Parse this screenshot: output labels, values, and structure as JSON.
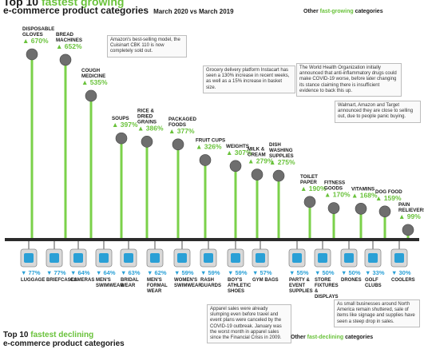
{
  "header": {
    "title_prefix": "Top 10 ",
    "title_accent": "fastest growing",
    "subtitle": "e-commerce product categories",
    "date_range": "March 2020 vs March 2019"
  },
  "other_growing": {
    "prefix": "Other ",
    "accent": "fast-growing",
    "suffix": " categories"
  },
  "other_declining": {
    "prefix": "Other ",
    "accent": "fast-declining",
    "suffix": " categories"
  },
  "footer": {
    "title_prefix": "Top 10 ",
    "title_accent": "fastest declining",
    "subtitle": "e-commerce product categories"
  },
  "notes": {
    "bread": "Amazon's best-selling model, the Cuisinart CBK 110 is now completely sold out.",
    "grocery": "Grocery delivery platform Instacart has seen a 130% increase in recent weeks, as well as a 15% increase in basket size.",
    "who": "The World Health Organization initially announced that anti-inflammatory drugs could make COVID-19 worse, before later changing its stance claiming there is insufficient evidence to back this up.",
    "walmart": "Walmart, Amazon and Target announced they are close to selling out, due to people panic buying.",
    "apparel": "Apparel sales were already slumping even before travel and event plans were canceled by the COVID-19 outbreak. January was the worst month in apparel sales since the Financial Crisis in 2009.",
    "smallbiz": "As small businesses around North America remain shuttered, sale of items like signage and supplies have seen a steep drop in sales."
  },
  "colors": {
    "accent": "#69c23a",
    "stem": "#7bd14a",
    "decline": "#2aa0d6",
    "baseline": "#2b2b2b",
    "icon": "#6e6e6e"
  },
  "chart_data": [
    {
      "type": "bar",
      "title": "Top 10 fastest growing e-commerce product categories",
      "subtitle": "March 2020 vs March 2019",
      "unit": "%",
      "series": [
        {
          "categories": [
            "DISPOSABLE GLOVES",
            "BREAD MACHINES",
            "COUGH MEDICINE",
            "SOUPS",
            "RICE & DRIED GRAINS",
            "PACKAGED FOODS",
            "FRUIT CUPS",
            "WEIGHTS",
            "MILK & CREAM",
            "DISH WASHING SUPPLIES"
          ],
          "values": [
            670,
            652,
            535,
            397,
            386,
            377,
            326,
            307,
            279,
            275
          ]
        }
      ]
    },
    {
      "type": "bar",
      "title": "Other fast-growing categories",
      "unit": "%",
      "series": [
        {
          "categories": [
            "TOILET PAPER",
            "FITNESS GOODS",
            "VITAMINS",
            "DOG FOOD",
            "PAIN RELIEVERS"
          ],
          "values": [
            190,
            170,
            168,
            159,
            99
          ]
        }
      ]
    },
    {
      "type": "bar",
      "title": "Top 10 fastest declining e-commerce product categories",
      "unit": "%",
      "series": [
        {
          "categories": [
            "LUGGAGE",
            "BRIEFCASES",
            "CAMERAS",
            "MEN'S SWIMWEAR",
            "BRIDAL WEAR",
            "MEN'S FORMAL WEAR",
            "WOMEN'S SWIMWEAR",
            "RASH GUARDS",
            "BOY'S ATHLETIC SHOES",
            "GYM BAGS"
          ],
          "values": [
            -77,
            -77,
            -64,
            -64,
            -63,
            -62,
            -59,
            -59,
            -59,
            -57
          ]
        }
      ]
    },
    {
      "type": "bar",
      "title": "Other fast-declining categories",
      "unit": "%",
      "series": [
        {
          "categories": [
            "PARTY & EVENT SUPPLIES",
            "STORE FIXTURES & DISPLAYS",
            "DRONES",
            "GOLF CLUBS",
            "COOLERS"
          ],
          "values": [
            -55,
            -50,
            -50,
            -33,
            -30
          ]
        }
      ]
    }
  ]
}
